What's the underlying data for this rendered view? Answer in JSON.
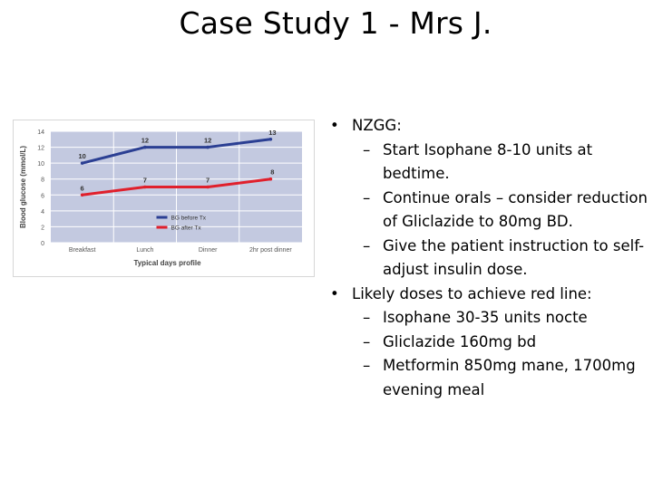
{
  "slide": {
    "title": "Case Study 1 - Mrs J."
  },
  "chart_data": {
    "type": "line",
    "title": "",
    "xlabel": "Typical days profile",
    "ylabel": "Blood glucose (mmol/L)",
    "categories": [
      "Breakfast",
      "Lunch",
      "Dinner",
      "2hr post dinner"
    ],
    "ylim": [
      0,
      14
    ],
    "yticks": [
      0,
      2,
      4,
      6,
      8,
      10,
      12,
      14
    ],
    "grid": true,
    "legend_position": "bottom-right",
    "series": [
      {
        "name": "BG before Tx",
        "color": "#2b3f93",
        "values": [
          10,
          12,
          12,
          13
        ]
      },
      {
        "name": "BG after Tx",
        "color": "#e0202c",
        "values": [
          6,
          7,
          7,
          8
        ]
      }
    ]
  },
  "colors": {
    "plot_background": "#c3c9e0",
    "gridline": "#ffffff",
    "axis_text": "#555555"
  },
  "bullets": [
    {
      "text": "NZGG:",
      "children": [
        "Start Isophane 8-10 units at bedtime.",
        "Continue orals – consider reduction of Gliclazide to 80mg BD.",
        "Give the patient instruction to self-adjust insulin dose."
      ]
    },
    {
      "text": "Likely doses to achieve red line:",
      "children": [
        "Isophane 30-35 units nocte",
        "Gliclazide 160mg bd",
        "Metformin 850mg mane, 1700mg evening meal"
      ]
    }
  ],
  "glyphs": {
    "bullet": "•",
    "dash": "–"
  }
}
